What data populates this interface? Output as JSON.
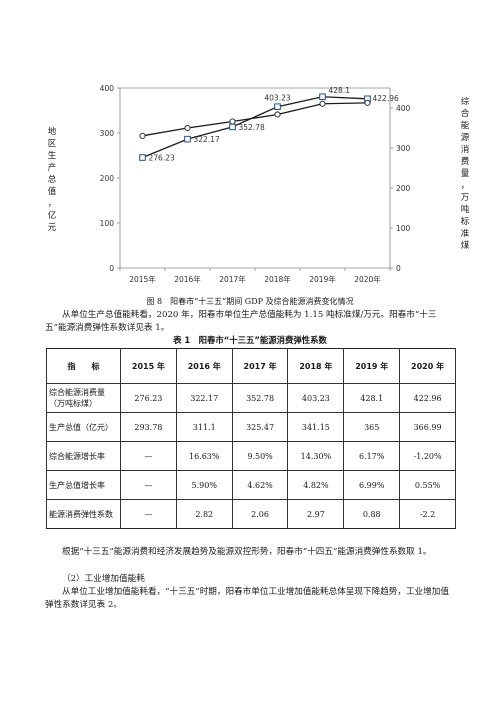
{
  "figure": {
    "caption": "图 8　阳春市“十三五”期间 GDP 及综合能源消费变化情况",
    "left_axis_label": [
      "地",
      "区",
      "生",
      "产",
      "总",
      "值",
      "，",
      "亿",
      "元"
    ],
    "right_axis_label": [
      "综",
      "合",
      "能",
      "源",
      "消",
      "费",
      "量",
      "，",
      "万",
      "吨",
      "标",
      "准",
      "煤"
    ]
  },
  "chart_data": {
    "type": "line",
    "x": [
      "2015年",
      "2016年",
      "2017年",
      "2018年",
      "2019年",
      "2020年"
    ],
    "series": [
      {
        "values": [
          276.23,
          322.17,
          352.78,
          403.23,
          428.1,
          422.96
        ],
        "axis": "right",
        "marker": "square",
        "data_labels": [
          "276.23",
          "322.17",
          "352.78",
          "403.23",
          "428.1",
          "422.96"
        ]
      },
      {
        "values": [
          293.78,
          311.1,
          325.47,
          341.15,
          365,
          366.99
        ],
        "axis": "left",
        "marker": "circle"
      }
    ],
    "y_left": {
      "range": [
        0,
        400
      ],
      "ticks": [
        "0",
        "100",
        "200",
        "300",
        "400"
      ]
    },
    "y_right": {
      "range": [
        0,
        450
      ],
      "ticks": [
        "0",
        "100",
        "200",
        "300",
        "400"
      ]
    },
    "grid": false
  },
  "paragraphs": {
    "p1": "从单位生产总值能耗看，2020 年，阳春市单位生产总值能耗为 1.15 吨标准煤/万元。阳春市“十三五”能源消费弹性系数详见表 1。",
    "p2": "根据“十三五”能源消费和经济发展趋势及能源双控形势，阳春市“十四五”能源消费弹性系数取 1。",
    "p3": "（2）工业增加值能耗",
    "p4": "从单位工业增加值能耗看，“十三五”时期，阳春市单位工业增加值能耗总体呈现下降趋势，工业增加值弹性系数详见表 2。"
  },
  "table": {
    "title": "表 1　阳春市“十三五”能源消费弹性系数",
    "headers": [
      "指　　标",
      "2015 年",
      "2016 年",
      "2017 年",
      "2018 年",
      "2019 年",
      "2020 年"
    ],
    "rows": [
      {
        "label": "综合能源消费量（万吨标煤）",
        "cells": [
          "276.23",
          "322.17",
          "352.78",
          "403.23",
          "428.1",
          "422.96"
        ]
      },
      {
        "label": "生产总值（亿元）",
        "cells": [
          "293.78",
          "311.1",
          "325.47",
          "341.15",
          "365",
          "366.99"
        ]
      },
      {
        "label": "综合能源增长率",
        "cells": [
          "—",
          "16.63%",
          "9.50%",
          "14.30%",
          "6.17%",
          "-1.20%"
        ]
      },
      {
        "label": "生产总值增长率",
        "cells": [
          "—",
          "5.90%",
          "4.62%",
          "4.82%",
          "6.99%",
          "0.55%"
        ]
      },
      {
        "label": "能源消费弹性系数",
        "cells": [
          "—",
          "2.82",
          "2.06",
          "2.97",
          "0.88",
          "-2.2"
        ]
      }
    ]
  }
}
